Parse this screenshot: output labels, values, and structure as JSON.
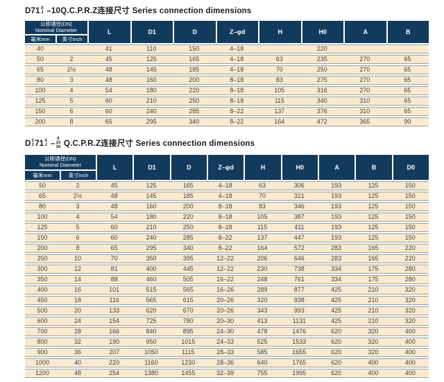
{
  "colors": {
    "header_bg": "#123a5c",
    "header_text": "#ffffff",
    "row_bg": "#fbead0",
    "row_text": "#3e3e3e",
    "rule": "#95a1a1",
    "title_text": "#1a1a1a",
    "page_bg": "#ffffff"
  },
  "tables": [
    {
      "title_parts": [
        {
          "text": "D71"
        },
        {
          "stack": [
            "X",
            "J"
          ]
        },
        {
          "text": " –10Q.C.P.R.Z连接尺寸 Series connection dimensions"
        }
      ],
      "header": {
        "group_cn": "公称通径(DN)",
        "group_en": "Nominal Diameter",
        "sub_mm": "毫米mm",
        "sub_inch": "英寸inch",
        "cols": [
          "L",
          "D1",
          "D",
          "Z–φd",
          "H",
          "H0",
          "A",
          "B"
        ]
      },
      "rows": [
        [
          "40",
          "",
          "41",
          "110",
          "150",
          "4–18",
          "",
          "220",
          "",
          ""
        ],
        [
          "50",
          "2",
          "45",
          "125",
          "165",
          "4–18",
          "63",
          "235",
          "270",
          "65"
        ],
        [
          "65",
          "2½",
          "48",
          "145",
          "185",
          "4–18",
          "70",
          "250",
          "270",
          "65"
        ],
        [
          "80",
          "3",
          "48",
          "160",
          "200",
          "8–18",
          "83",
          "275",
          "270",
          "65"
        ],
        [
          "100",
          "4",
          "54",
          "180",
          "220",
          "8–18",
          "105",
          "316",
          "270",
          "65"
        ],
        [
          "125",
          "5",
          "60",
          "210",
          "250",
          "8–18",
          "115",
          "340",
          "310",
          "65"
        ],
        [
          "150",
          "6",
          "60",
          "240",
          "285",
          "8–22",
          "137",
          "376",
          "310",
          "65"
        ],
        [
          "200",
          "8",
          "65",
          "295",
          "340",
          "8–22",
          "164",
          "472",
          "365",
          "90"
        ]
      ]
    },
    {
      "title_parts": [
        {
          "text": "D"
        },
        {
          "stack": [
            "2",
            "3"
          ]
        },
        {
          "text": "71"
        },
        {
          "stack": [
            "X",
            "J"
          ]
        },
        {
          "text": " –"
        },
        {
          "stack": [
            "6",
            "10",
            "16"
          ]
        },
        {
          "text": " Q.C.P.R.Z连接尺寸 Series connection dimensions"
        }
      ],
      "header": {
        "group_cn": "公称通径(DN)",
        "group_en": "Nominal Diameter",
        "sub_mm": "毫米mm",
        "sub_inch": "英寸inch",
        "cols": [
          "L",
          "D1",
          "D",
          "Z–φd",
          "H",
          "H0",
          "A",
          "B",
          "D0"
        ]
      },
      "rows": [
        [
          "50",
          "2",
          "45",
          "125",
          "165",
          "4–18",
          "63",
          "306",
          "193",
          "125",
          "150"
        ],
        [
          "65",
          "2½",
          "48",
          "145",
          "185",
          "4–18",
          "70",
          "321",
          "193",
          "125",
          "150"
        ],
        [
          "80",
          "3",
          "48",
          "160",
          "200",
          "8–18",
          "83",
          "346",
          "193",
          "125",
          "150"
        ],
        [
          "100",
          "4",
          "54",
          "180",
          "220",
          "8–18",
          "105",
          "387",
          "193",
          "125",
          "150"
        ],
        [
          "125",
          "5",
          "60",
          "210",
          "250",
          "8–18",
          "115",
          "411",
          "193",
          "125",
          "150"
        ],
        [
          "150",
          "6",
          "60",
          "240",
          "285",
          "8–22",
          "137",
          "447",
          "193",
          "125",
          "150"
        ],
        [
          "200",
          "8",
          "65",
          "295",
          "340",
          "8–22",
          "164",
          "572",
          "283",
          "165",
          "220"
        ],
        [
          "250",
          "10",
          "70",
          "350",
          "395",
          "12–22",
          "206",
          "646",
          "283",
          "165",
          "220"
        ],
        [
          "300",
          "12",
          "81",
          "400",
          "445",
          "12–22",
          "230",
          "738",
          "334",
          "175",
          "280"
        ],
        [
          "350",
          "14",
          "88",
          "460",
          "505",
          "16–22",
          "248",
          "761",
          "334",
          "175",
          "280"
        ],
        [
          "400",
          "16",
          "101",
          "515",
          "565",
          "16–26",
          "289",
          "877",
          "425",
          "210",
          "320"
        ],
        [
          "450",
          "18",
          "116",
          "565",
          "615",
          "20–26",
          "320",
          "938",
          "425",
          "210",
          "320"
        ],
        [
          "500",
          "20",
          "133",
          "620",
          "670",
          "20–26",
          "343",
          "993",
          "425",
          "210",
          "320"
        ],
        [
          "600",
          "24",
          "154",
          "725",
          "780",
          "20–30",
          "413",
          "1131",
          "425",
          "210",
          "320"
        ],
        [
          "700",
          "28",
          "166",
          "840",
          "895",
          "24–30",
          "478",
          "1476",
          "620",
          "320",
          "400"
        ],
        [
          "800",
          "32",
          "190",
          "950",
          "1015",
          "24–33",
          "525",
          "1533",
          "620",
          "320",
          "400"
        ],
        [
          "900",
          "36",
          "207",
          "1050",
          "1115",
          "28–33",
          "585",
          "1655",
          "620",
          "320",
          "400"
        ],
        [
          "1000",
          "40",
          "220",
          "1160",
          "1230",
          "28–36",
          "640",
          "1765",
          "620",
          "400",
          "400"
        ],
        [
          "1200",
          "48",
          "254",
          "1380",
          "1455",
          "32–39",
          "755",
          "1995",
          "620",
          "400",
          "400"
        ]
      ]
    }
  ]
}
